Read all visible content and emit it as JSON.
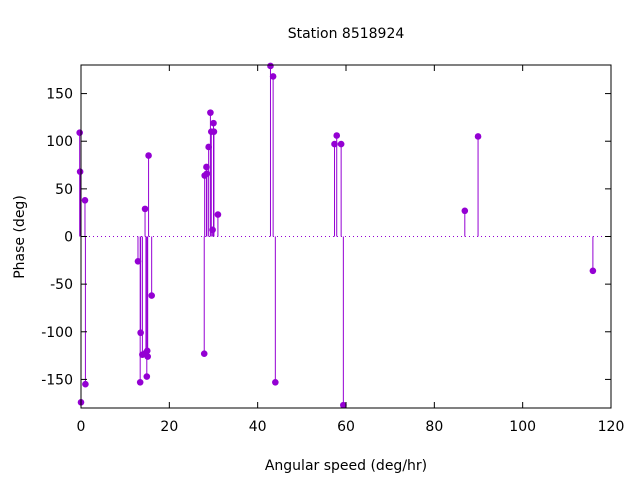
{
  "chart_data": {
    "type": "scatter",
    "style": "impulses-with-points",
    "title": "Station 8518924",
    "xlabel": "Angular speed (deg/hr)",
    "ylabel": "Phase (deg)",
    "xlim": [
      0,
      120
    ],
    "ylim": [
      -180,
      180
    ],
    "xticks": [
      0,
      20,
      40,
      60,
      80,
      100,
      120
    ],
    "yticks": [
      -150,
      -100,
      -50,
      0,
      50,
      100,
      150
    ],
    "zero_line": "dotted",
    "grid": false,
    "color": "#9400d3",
    "points": [
      {
        "x": -0.3,
        "y": 109
      },
      {
        "x": -0.2,
        "y": 68
      },
      {
        "x": 0.0,
        "y": -174
      },
      {
        "x": 0.9,
        "y": 38
      },
      {
        "x": 1.0,
        "y": -155
      },
      {
        "x": 12.9,
        "y": -26
      },
      {
        "x": 13.4,
        "y": -153
      },
      {
        "x": 13.5,
        "y": -101
      },
      {
        "x": 13.9,
        "y": -124
      },
      {
        "x": 14.5,
        "y": 29
      },
      {
        "x": 14.7,
        "y": -122
      },
      {
        "x": 14.9,
        "y": -147
      },
      {
        "x": 15.0,
        "y": -120
      },
      {
        "x": 15.1,
        "y": -126
      },
      {
        "x": 15.3,
        "y": 85
      },
      {
        "x": 16.0,
        "y": -62
      },
      {
        "x": 27.9,
        "y": -123
      },
      {
        "x": 28.0,
        "y": 64
      },
      {
        "x": 28.4,
        "y": 73
      },
      {
        "x": 28.5,
        "y": 66
      },
      {
        "x": 28.9,
        "y": 94
      },
      {
        "x": 29.3,
        "y": 130
      },
      {
        "x": 29.5,
        "y": 110
      },
      {
        "x": 29.8,
        "y": 7
      },
      {
        "x": 30.0,
        "y": 119
      },
      {
        "x": 30.1,
        "y": 110
      },
      {
        "x": 31.0,
        "y": 23
      },
      {
        "x": 42.9,
        "y": 179
      },
      {
        "x": 43.5,
        "y": 168
      },
      {
        "x": 44.0,
        "y": -153
      },
      {
        "x": 57.4,
        "y": 97
      },
      {
        "x": 57.9,
        "y": 106
      },
      {
        "x": 58.9,
        "y": 97
      },
      {
        "x": 59.4,
        "y": -177
      },
      {
        "x": 86.9,
        "y": 27
      },
      {
        "x": 89.9,
        "y": 105
      },
      {
        "x": 115.9,
        "y": -36
      }
    ]
  }
}
